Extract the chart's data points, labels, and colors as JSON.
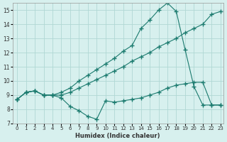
{
  "xlabel": "Humidex (Indice chaleur)",
  "bg_color": "#d7f0ee",
  "grid_color": "#b0d8d4",
  "line_color": "#1a7a6e",
  "xlim": [
    -0.5,
    23.3
  ],
  "ylim": [
    7,
    15.5
  ],
  "yticks": [
    7,
    8,
    9,
    10,
    11,
    12,
    13,
    14,
    15
  ],
  "xticks": [
    0,
    1,
    2,
    3,
    4,
    5,
    6,
    7,
    8,
    9,
    10,
    11,
    12,
    13,
    14,
    15,
    16,
    17,
    18,
    19,
    20,
    21,
    22,
    23
  ],
  "line1_x": [
    0,
    1,
    2,
    3,
    4,
    5,
    6,
    7,
    8,
    9,
    10,
    11,
    12,
    13,
    14,
    15,
    16,
    17,
    18,
    19,
    20,
    21,
    22,
    23
  ],
  "line1_y": [
    8.7,
    9.2,
    9.3,
    9.0,
    9.0,
    8.8,
    8.2,
    7.9,
    7.5,
    7.3,
    8.6,
    8.5,
    8.6,
    8.7,
    8.8,
    9.0,
    9.2,
    9.5,
    9.7,
    9.8,
    9.9,
    9.9,
    8.3,
    8.3
  ],
  "line2_x": [
    0,
    1,
    2,
    3,
    4,
    5,
    6,
    7,
    8,
    9,
    10,
    11,
    12,
    13,
    14,
    15,
    16,
    17,
    18,
    19,
    20,
    21,
    22,
    23
  ],
  "line2_y": [
    8.7,
    9.2,
    9.3,
    9.0,
    9.0,
    9.2,
    9.5,
    10.0,
    10.4,
    10.8,
    11.2,
    11.6,
    12.1,
    12.5,
    13.7,
    14.3,
    15.0,
    15.5,
    14.9,
    12.2,
    9.6,
    8.3,
    8.3,
    8.3
  ],
  "line3_x": [
    0,
    1,
    2,
    3,
    4,
    5,
    6,
    7,
    8,
    9,
    10,
    11,
    12,
    13,
    14,
    15,
    16,
    17,
    18,
    19,
    20,
    21,
    22,
    23
  ],
  "line3_y": [
    8.7,
    9.2,
    9.3,
    9.0,
    9.0,
    9.0,
    9.2,
    9.5,
    9.8,
    10.1,
    10.4,
    10.7,
    11.0,
    11.4,
    11.7,
    12.0,
    12.4,
    12.7,
    13.0,
    13.4,
    13.7,
    14.0,
    14.7,
    14.9
  ]
}
